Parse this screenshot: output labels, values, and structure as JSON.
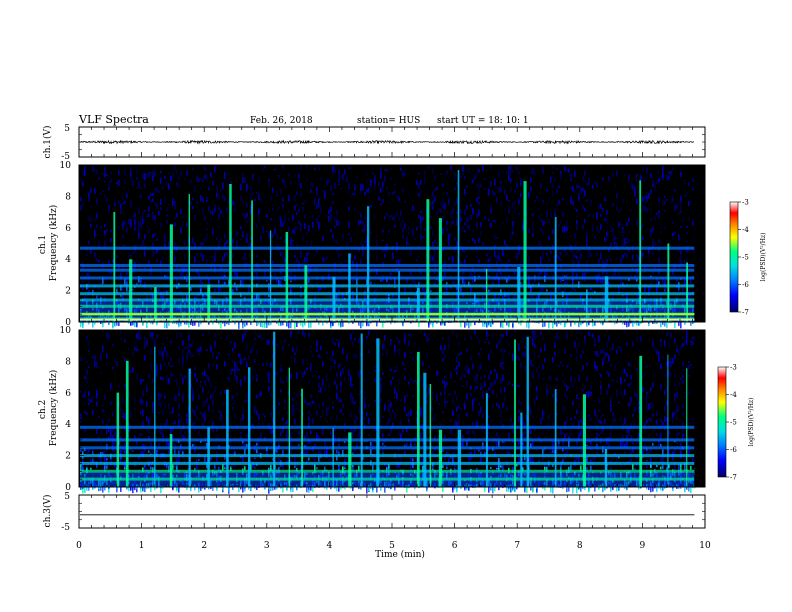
{
  "header": {
    "title": "VLF Spectra",
    "date": "Feb. 26, 2018",
    "station": "station= HUS",
    "start": "start  UT =   18: 10: 1"
  },
  "colors": {
    "background": "#000000",
    "line": "#000000",
    "colormap": [
      "#000066",
      "#0000ff",
      "#0088ff",
      "#00e0e0",
      "#00ff80",
      "#ffff00",
      "#ff8000",
      "#ff0000",
      "#ffffff"
    ]
  },
  "chart_data": [
    {
      "type": "line",
      "panel": "ch1-waveform",
      "ylabel": "ch.1(V)",
      "ylim": [
        -5,
        5
      ],
      "xlim": [
        0,
        10
      ],
      "yticks": [
        "5",
        "-5"
      ],
      "x_range": [
        0,
        9.83
      ],
      "description_values": {
        "mean": 0,
        "amplitude": 0.3
      }
    },
    {
      "type": "heatmap",
      "panel": "ch1-spectrogram",
      "ylabel": "ch.1\nFrequency (kHz)",
      "ylim": [
        0,
        10
      ],
      "xlim": [
        0,
        10
      ],
      "yticks": [
        "0",
        "2",
        "4",
        "6",
        "8",
        "10"
      ],
      "colorbar": {
        "label": "log(PSD)(V²/Hz)",
        "range": [
          -7,
          -3
        ],
        "ticks": [
          "-3",
          "-4",
          "-5",
          "-6",
          "-7"
        ]
      },
      "bands_khz": [
        0.2,
        0.5,
        1.0,
        1.4,
        1.8,
        2.3,
        2.8,
        3.3,
        3.6,
        4.7
      ],
      "vertical_bursts_min": [
        0.55,
        0.8,
        1.2,
        1.45,
        1.75,
        2.05,
        2.4,
        2.75,
        3.05,
        3.3,
        3.6,
        4.05,
        4.3,
        4.6,
        5.1,
        5.4,
        5.55,
        5.75,
        6.05,
        6.5,
        7.0,
        7.1,
        7.6,
        8.1,
        8.4,
        8.95,
        9.4,
        9.7
      ]
    },
    {
      "type": "heatmap",
      "panel": "ch2-spectrogram",
      "ylabel": "ch.2\nFrequency (kHz)",
      "ylim": [
        0,
        10
      ],
      "xlim": [
        0,
        10
      ],
      "yticks": [
        "0",
        "2",
        "4",
        "6",
        "8",
        "10"
      ],
      "colorbar": {
        "label": "log(PSD)(V²/Hz)",
        "range": [
          -7,
          -3
        ],
        "ticks": [
          "-3",
          "-4",
          "-5",
          "-6",
          "-7"
        ]
      },
      "bands_khz": [
        0.5,
        1.0,
        1.5,
        2.0,
        2.5,
        3.0,
        3.8
      ],
      "vertical_bursts_min": [
        0.6,
        0.75,
        1.2,
        1.45,
        1.75,
        2.05,
        2.35,
        2.7,
        3.1,
        3.35,
        3.55,
        4.05,
        4.3,
        4.5,
        4.75,
        5.4,
        5.5,
        5.6,
        5.75,
        6.05,
        6.5,
        6.95,
        7.05,
        7.15,
        7.6,
        8.05,
        8.4,
        8.95,
        9.4,
        9.7
      ]
    },
    {
      "type": "line",
      "panel": "ch3-waveform",
      "ylabel": "ch.3(V)",
      "ylim": [
        -5,
        5
      ],
      "xlim": [
        0,
        10
      ],
      "yticks": [
        "5",
        "-5"
      ],
      "xlabel": "Time (min)",
      "xticks": [
        "0",
        "1",
        "2",
        "3",
        "4",
        "5",
        "6",
        "7",
        "8",
        "9",
        "10"
      ],
      "x_range": [
        0,
        9.83
      ],
      "constant_value": -1
    }
  ]
}
